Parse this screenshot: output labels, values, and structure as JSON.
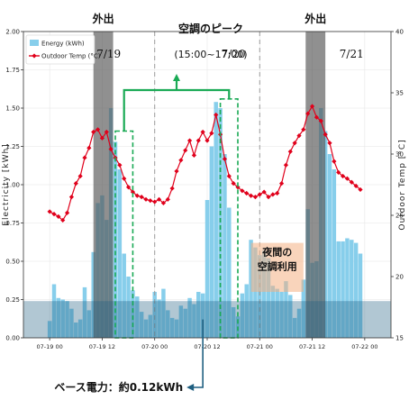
{
  "chart_data": {
    "type": "bar",
    "title": "",
    "xlabel": "",
    "ylabel": "Electricity [kWh]",
    "y2label": "Outdoor Temp [°C]",
    "ylim": [
      0,
      2.0
    ],
    "y2lim": [
      15,
      40
    ],
    "xlim_hours": [
      -6,
      78
    ],
    "yticks": [
      0.0,
      0.25,
      0.5,
      0.75,
      1.0,
      1.25,
      1.5,
      1.75,
      2.0
    ],
    "ytick_labels": [
      "0.00",
      "0.25",
      "0.50",
      "0.75",
      "1.00",
      "1.25",
      "1.50",
      "1.75",
      "2.00"
    ],
    "y2ticks": [
      15,
      20,
      25,
      30,
      35,
      40
    ],
    "y2tick_labels": [
      "15",
      "20",
      "25",
      "30",
      "35",
      "40"
    ],
    "xticks_hours": [
      0,
      12,
      24,
      36,
      48,
      60,
      72
    ],
    "xtick_labels": [
      "07-19 00",
      "07-19 12",
      "07-20 00",
      "07-20 12",
      "07-21 00",
      "07-21 12",
      "07-22 00"
    ],
    "grid": true,
    "legend_position": "top-left",
    "series": [
      {
        "name": "Energy (kWh)",
        "type": "bar",
        "color": "#87ceeb",
        "x_hours": [
          0,
          1,
          2,
          3,
          4,
          5,
          6,
          7,
          8,
          9,
          10,
          11,
          12,
          13,
          14,
          15,
          16,
          17,
          18,
          19,
          20,
          21,
          22,
          23,
          24,
          25,
          26,
          27,
          28,
          29,
          30,
          31,
          32,
          33,
          34,
          35,
          36,
          37,
          38,
          39,
          40,
          41,
          42,
          43,
          44,
          45,
          46,
          47,
          48,
          49,
          50,
          51,
          52,
          53,
          54,
          55,
          56,
          57,
          58,
          59,
          60,
          61,
          62,
          63,
          64,
          65,
          66,
          67,
          68,
          69,
          70,
          71
        ],
        "values": [
          0.11,
          0.35,
          0.26,
          0.25,
          0.24,
          0.19,
          0.1,
          0.12,
          0.33,
          0.18,
          0.56,
          0.88,
          0.93,
          0.77,
          1.5,
          1.28,
          1.1,
          0.55,
          0.4,
          0.31,
          0.27,
          0.17,
          0.12,
          0.15,
          0.3,
          0.25,
          0.32,
          0.18,
          0.13,
          0.12,
          0.21,
          0.19,
          0.26,
          0.22,
          0.3,
          0.29,
          0.9,
          1.25,
          1.54,
          1.5,
          1.2,
          0.85,
          0.2,
          0.14,
          0.29,
          0.35,
          0.64,
          0.59,
          0.54,
          0.57,
          0.52,
          0.34,
          0.32,
          0.3,
          0.37,
          0.28,
          0.13,
          0.19,
          0.38,
          0.84,
          0.49,
          0.5,
          1.5,
          1.35,
          1.2,
          1.1,
          0.63,
          0.63,
          0.65,
          0.64,
          0.62,
          0.55
        ]
      },
      {
        "name": "Outdoor Temp (°C)",
        "type": "line",
        "color": "#e0001b",
        "x_hours": [
          0,
          1,
          2,
          3,
          4,
          5,
          6,
          7,
          8,
          9,
          10,
          11,
          12,
          13,
          14,
          15,
          16,
          17,
          18,
          19,
          20,
          21,
          22,
          23,
          24,
          25,
          26,
          27,
          28,
          29,
          30,
          31,
          32,
          33,
          34,
          35,
          36,
          37,
          38,
          39,
          40,
          41,
          42,
          43,
          44,
          45,
          46,
          47,
          48,
          49,
          50,
          51,
          52,
          53,
          54,
          55,
          56,
          57,
          58,
          59,
          60,
          61,
          62,
          63,
          64,
          65,
          66,
          67,
          68,
          69,
          70,
          71
        ],
        "values": [
          25.3,
          25.1,
          24.9,
          24.6,
          25.2,
          26.5,
          27.6,
          28.2,
          29.7,
          30.5,
          31.8,
          32.0,
          31.3,
          31.8,
          30.4,
          29.7,
          29.1,
          28.0,
          27.3,
          26.9,
          26.6,
          26.5,
          26.3,
          26.2,
          26.1,
          26.3,
          26.0,
          26.3,
          27.2,
          28.6,
          29.5,
          30.3,
          31.1,
          29.9,
          31.1,
          31.8,
          31.1,
          31.7,
          33.2,
          31.6,
          29.6,
          28.2,
          27.6,
          27.3,
          27.0,
          26.8,
          26.6,
          26.5,
          26.7,
          26.9,
          26.5,
          26.7,
          26.8,
          27.6,
          29.1,
          30.2,
          30.9,
          31.5,
          32.0,
          33.3,
          33.9,
          33.0,
          32.7,
          31.6,
          30.9,
          29.4,
          28.5,
          28.2,
          28.0,
          27.7,
          27.4,
          27.1
        ]
      }
    ],
    "annotations": {
      "day_labels": [
        {
          "text": "7/19",
          "x_hours": 13.5
        },
        {
          "text": "7/20",
          "x_hours": 42
        },
        {
          "text": "7/21",
          "x_hours": 69
        }
      ],
      "midnight_dashed_lines_hours": [
        24,
        48
      ],
      "away_spans": [
        {
          "text": "外出",
          "start_hours": 10,
          "end_hours": 14.5
        },
        {
          "text": "外出",
          "start_hours": 58.5,
          "end_hours": 63
        }
      ],
      "peak_boxes": [
        {
          "start_hours": 15,
          "end_hours": 19,
          "y_top": 1.35
        },
        {
          "start_hours": 39,
          "end_hours": 43,
          "y_top": 1.56
        }
      ],
      "peak_label": {
        "line1": "空調のピーク",
        "line2": "(15:00~17:00)"
      },
      "night_ac": {
        "text_line1": "夜間の",
        "text_line2": "空調利用",
        "start_hours": 46,
        "end_hours": 58,
        "y_bottom": 0.3,
        "y_top": 0.62
      },
      "base_load": {
        "text": "ベース電力：約0.12kWh",
        "value": 0.12,
        "x_hours": 35
      }
    }
  }
}
